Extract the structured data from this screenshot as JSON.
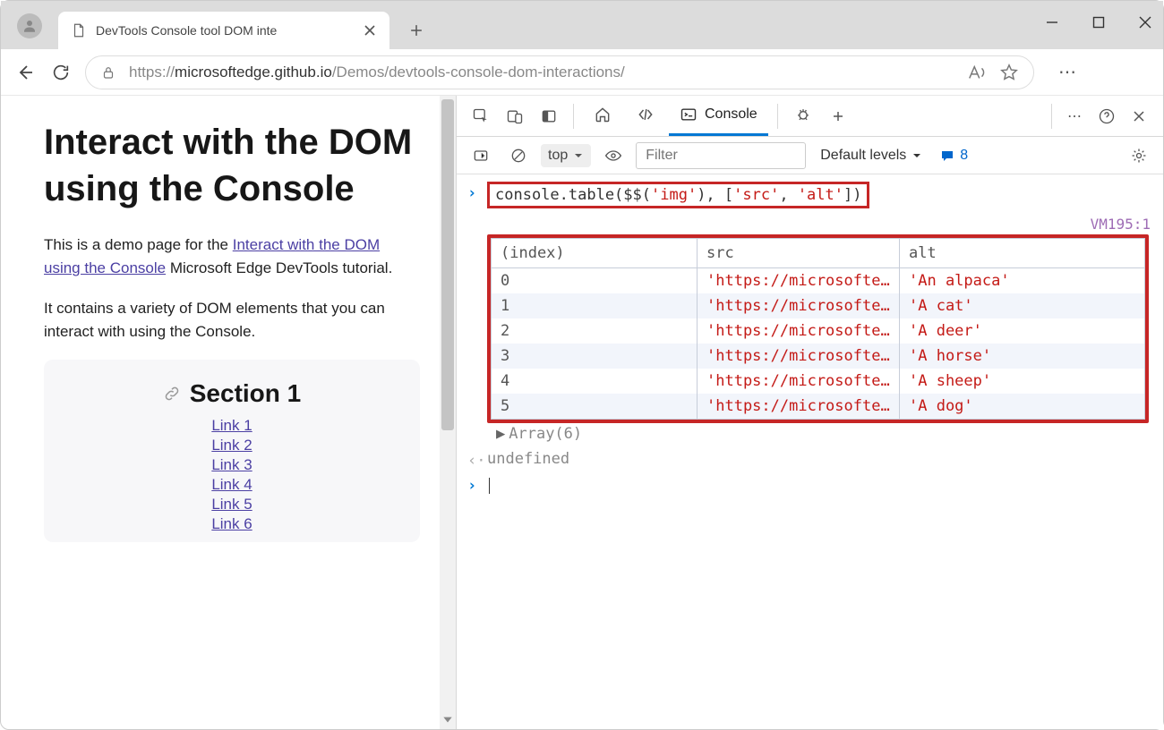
{
  "browser": {
    "tab_title": "DevTools Console tool DOM inte",
    "url_prefix": "https://",
    "url_host": "microsoftedge.github.io",
    "url_path": "/Demos/devtools-console-dom-interactions/"
  },
  "page": {
    "heading": "Interact with the DOM using the Console",
    "p1_pre": "This is a demo page for the ",
    "p1_link": "Interact with the DOM using the Console",
    "p1_post": " Microsoft Edge DevTools tutorial.",
    "p2": "It contains a variety of DOM elements that you can interact with using the Console.",
    "section_title": "Section 1",
    "links": [
      "Link 1",
      "Link 2",
      "Link 3",
      "Link 4",
      "Link 5",
      "Link 6"
    ]
  },
  "devtools": {
    "tab_console": "Console",
    "toolbar": {
      "context": "top",
      "filter_placeholder": "Filter",
      "levels_label": "Default levels",
      "issue_count": "8"
    },
    "command": "console.table($$('img'), ['src', 'alt'])",
    "vm_ref": "VM195:1",
    "table": {
      "headers": [
        "(index)",
        "src",
        "alt"
      ],
      "col_widths": [
        "230px",
        "226px",
        "auto"
      ],
      "rows": [
        {
          "index": "0",
          "src": "'https://microsofte…",
          "alt": "'An alpaca'"
        },
        {
          "index": "1",
          "src": "'https://microsofte…",
          "alt": "'A cat'"
        },
        {
          "index": "2",
          "src": "'https://microsofte…",
          "alt": "'A deer'"
        },
        {
          "index": "3",
          "src": "'https://microsofte…",
          "alt": "'A horse'"
        },
        {
          "index": "4",
          "src": "'https://microsofte…",
          "alt": "'A sheep'"
        },
        {
          "index": "5",
          "src": "'https://microsofte…",
          "alt": "'A dog'"
        }
      ]
    },
    "array_line": "Array(6)",
    "undefined_line": "undefined"
  },
  "colors": {
    "highlight_border": "#c62626",
    "link": "#4b3fa3",
    "string": "#c41a16",
    "devtools_active": "#0078d4"
  }
}
